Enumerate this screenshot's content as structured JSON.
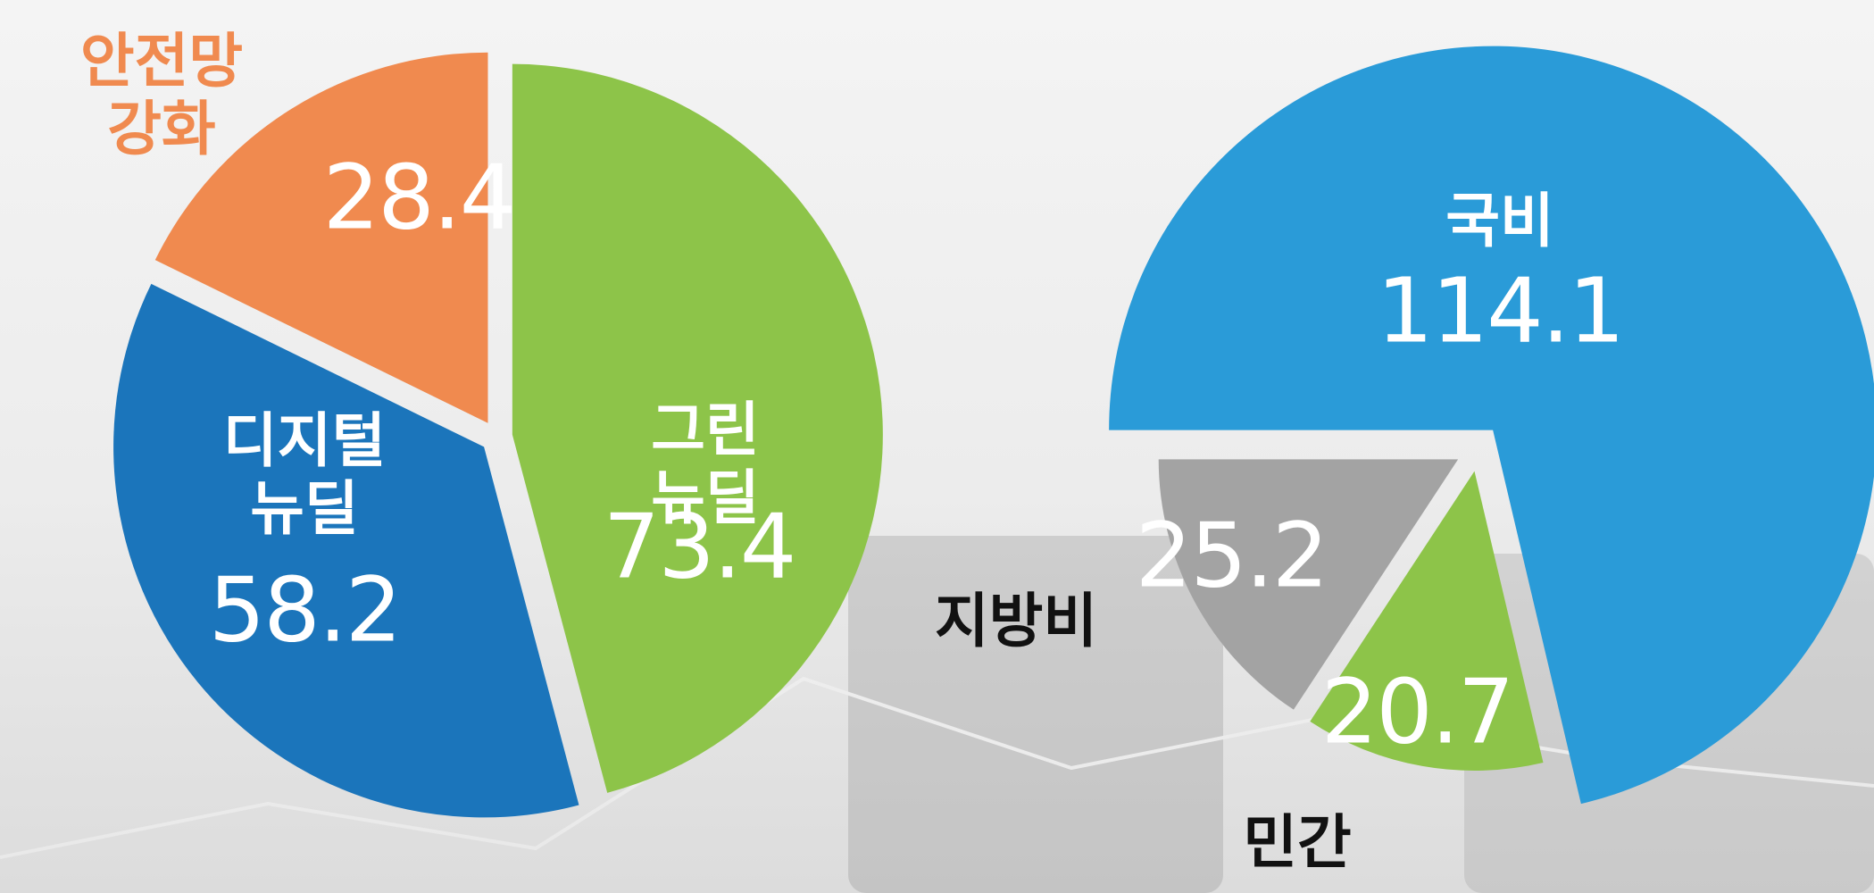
{
  "chart_data": [
    {
      "type": "pie",
      "labels": [
        "그린\n뉴딜",
        "디지털\n뉴딜",
        "안전망\n강화"
      ],
      "values": [
        73.4,
        58.2,
        28.4
      ],
      "colors": [
        "#8dc449",
        "#1b75bb",
        "#f08a4f"
      ]
    },
    {
      "type": "pie",
      "labels": [
        "국비",
        "민간",
        "지방비"
      ],
      "values": [
        114.1,
        20.7,
        25.2
      ],
      "colors": [
        "#2a9bd8",
        "#8dc449",
        "#a3a3a3"
      ]
    }
  ]
}
